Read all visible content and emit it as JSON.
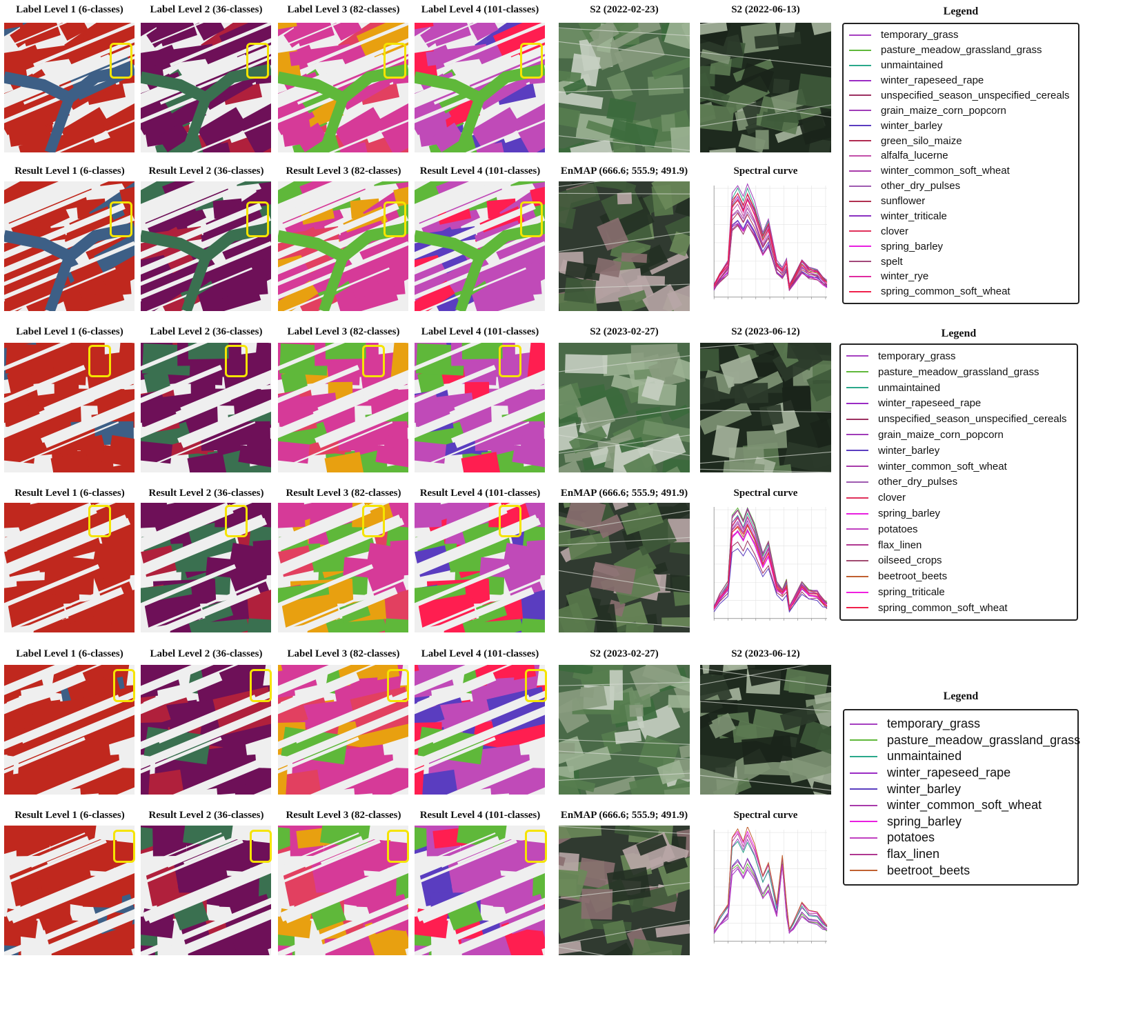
{
  "row_groups": [
    {
      "label_titles": [
        "Label Level 1 (6-classes)",
        "Label Level 2 (36-classes)",
        "Label Level 3 (82-classes)",
        "Label Level 4 (101-classes)"
      ],
      "result_titles": [
        "Result Level 1 (6-classes)",
        "Result  Level 2 (36-classes)",
        "Result Level 3 (82-classes)",
        "Result Level 4 (101-classes)"
      ],
      "s2_titles": [
        "S2 (2022-02-23)",
        "S2 (2022-06-13)"
      ],
      "enmap_title": "EnMAP (666.6; 555.9; 491.9)",
      "spectral_title": "Spectral curve",
      "legend": {
        "title": "Legend",
        "items": [
          {
            "label": "temporary_grass",
            "color": "#a53fc0"
          },
          {
            "label": "pasture_meadow_grassland_grass",
            "color": "#5fb83a"
          },
          {
            "label": "unmaintained",
            "color": "#2aa88a"
          },
          {
            "label": "winter_rapeseed_rape",
            "color": "#9a2bc4"
          },
          {
            "label": "unspecified_season_unspecified_cereals",
            "color": "#9c3060"
          },
          {
            "label": "grain_maize_corn_popcorn",
            "color": "#a03cb8"
          },
          {
            "label": "winter_barley",
            "color": "#5a3dc0"
          },
          {
            "label": "green_silo_maize",
            "color": "#b02a50"
          },
          {
            "label": "alfalfa_lucerne",
            "color": "#c24ea8"
          },
          {
            "label": "winter_common_soft_wheat",
            "color": "#a83aaa"
          },
          {
            "label": "other_dry_pulses",
            "color": "#9e5ab0"
          },
          {
            "label": "sunflower",
            "color": "#b03050"
          },
          {
            "label": "winter_triticale",
            "color": "#8a30c0"
          },
          {
            "label": "clover",
            "color": "#e0305a"
          },
          {
            "label": "spring_barley",
            "color": "#e81ee0"
          },
          {
            "label": "spelt",
            "color": "#a2487a"
          },
          {
            "label": "winter_rye",
            "color": "#e02aa0"
          },
          {
            "label": "spring_common_soft_wheat",
            "color": "#f0204a"
          }
        ]
      }
    },
    {
      "label_titles": [
        "Label Level 1 (6-classes)",
        "Label Level 2 (36-classes)",
        "Label Level 3 (82-classes)",
        "Label Level 4 (101-classes)"
      ],
      "result_titles": [
        "Result Level 1 (6-classes)",
        "Result  Level 2 (36-classes)",
        "Result Level 3 (82-classes)",
        "Result Level 4 (101-classes)"
      ],
      "s2_titles": [
        "S2 (2023-02-27)",
        "S2 (2023-06-12)"
      ],
      "enmap_title": "EnMAP (666.6; 555.9; 491.9)",
      "spectral_title": "Spectral curve",
      "legend": {
        "title": "Legend",
        "items": [
          {
            "label": "temporary_grass",
            "color": "#a53fc0"
          },
          {
            "label": "pasture_meadow_grassland_grass",
            "color": "#5fb83a"
          },
          {
            "label": "unmaintained",
            "color": "#2aa88a"
          },
          {
            "label": "winter_rapeseed_rape",
            "color": "#9a2bc4"
          },
          {
            "label": "unspecified_season_unspecified_cereals",
            "color": "#9c3060"
          },
          {
            "label": "grain_maize_corn_popcorn",
            "color": "#a03cb8"
          },
          {
            "label": "winter_barley",
            "color": "#5a3dc0"
          },
          {
            "label": "winter_common_soft_wheat",
            "color": "#a83aaa"
          },
          {
            "label": "other_dry_pulses",
            "color": "#9e5ab0"
          },
          {
            "label": "clover",
            "color": "#e0305a"
          },
          {
            "label": "spring_barley",
            "color": "#e81ee0"
          },
          {
            "label": "potatoes",
            "color": "#c040c0"
          },
          {
            "label": "flax_linen",
            "color": "#b03890"
          },
          {
            "label": "oilseed_crops",
            "color": "#a04a70"
          },
          {
            "label": "beetroot_beets",
            "color": "#c06030"
          },
          {
            "label": "spring_triticale",
            "color": "#f020e0"
          },
          {
            "label": "spring_common_soft_wheat",
            "color": "#f0204a"
          }
        ]
      }
    },
    {
      "label_titles": [
        "Label Level 1 (6-classes)",
        "Label Level 2 (36-classes)",
        "Label Level 3 (82-classes)",
        "Label Level 4 (101-classes)"
      ],
      "result_titles": [
        "Result Level 1 (6-classes)",
        "Result  Level 2 (36-classes)",
        "Result Level 3 (82-classes)",
        "Result Level 4 (101-classes)"
      ],
      "s2_titles": [
        "S2 (2023-02-27)",
        "S2 (2023-06-12)"
      ],
      "enmap_title": "EnMAP (666.6; 555.9; 491.9)",
      "spectral_title": "Spectral curve",
      "legend": {
        "title": "Legend",
        "items": [
          {
            "label": "temporary_grass",
            "color": "#a53fc0"
          },
          {
            "label": "pasture_meadow_grassland_grass",
            "color": "#5fb83a"
          },
          {
            "label": "unmaintained",
            "color": "#2aa88a"
          },
          {
            "label": "winter_rapeseed_rape",
            "color": "#9a2bc4"
          },
          {
            "label": "winter_barley",
            "color": "#5a3dc0"
          },
          {
            "label": "winter_common_soft_wheat",
            "color": "#a83aaa"
          },
          {
            "label": "spring_barley",
            "color": "#e81ee0"
          },
          {
            "label": "potatoes",
            "color": "#c040c0"
          },
          {
            "label": "flax_linen",
            "color": "#b03890"
          },
          {
            "label": "beetroot_beets",
            "color": "#c06030"
          }
        ]
      }
    }
  ],
  "map_palettes": {
    "level1": {
      "field": "#c0281e",
      "alt": "#3d5f86",
      "bg": "#efefef"
    },
    "level2": {
      "field": "#6e1058",
      "alt": "#3a7050",
      "alt2": "#b0203c",
      "bg": "#efefef"
    },
    "level3": {
      "field": "#d63a98",
      "alt": "#5fb83a",
      "alt2": "#e24060",
      "alt3": "#e8a010",
      "bg": "#efefef"
    },
    "level4": {
      "field": "#c04ab8",
      "alt": "#5fb83a",
      "alt2": "#5a3dc0",
      "alt3": "#ff1e50",
      "bg": "#efefef"
    },
    "highlight": "#f5e400"
  }
}
